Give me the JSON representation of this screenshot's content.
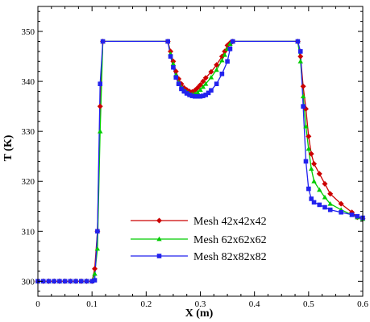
{
  "chart_data": {
    "type": "line",
    "xlabel": "X (m)",
    "ylabel": "T (K)",
    "xlim": [
      0,
      0.6
    ],
    "ylim": [
      297,
      355
    ],
    "xticks": [
      0,
      0.1,
      0.2,
      0.3,
      0.4,
      0.5,
      0.6
    ],
    "xtick_labels": [
      "0",
      "0.1",
      "0.2",
      "0.3",
      "0.4",
      "0.5",
      "0.6"
    ],
    "yticks": [
      300,
      310,
      320,
      330,
      340,
      350
    ],
    "ytick_labels": [
      "300",
      "310",
      "320",
      "330",
      "340",
      "350"
    ],
    "grid": false,
    "legend_position": "lower-center",
    "series": [
      {
        "name": "Mesh 42x42x42",
        "color": "#cc0000",
        "marker": "diamond",
        "x": [
          0,
          0.01,
          0.02,
          0.03,
          0.04,
          0.05,
          0.06,
          0.07,
          0.08,
          0.09,
          0.1,
          0.105,
          0.11,
          0.115,
          0.12,
          0.24,
          0.245,
          0.25,
          0.255,
          0.26,
          0.265,
          0.27,
          0.275,
          0.28,
          0.285,
          0.29,
          0.295,
          0.3,
          0.305,
          0.31,
          0.32,
          0.33,
          0.34,
          0.345,
          0.35,
          0.355,
          0.36,
          0.48,
          0.485,
          0.49,
          0.495,
          0.5,
          0.505,
          0.51,
          0.52,
          0.53,
          0.54,
          0.56,
          0.58,
          0.59,
          0.6
        ],
        "y": [
          300,
          300,
          300,
          300,
          300,
          300,
          300,
          300,
          300,
          300,
          300,
          302.5,
          310,
          335,
          348,
          348,
          346,
          344,
          342,
          340.5,
          339.5,
          338.7,
          338.3,
          338,
          337.9,
          338.2,
          338.7,
          339.3,
          340,
          340.7,
          341.9,
          343.3,
          345,
          346,
          347.2,
          347.7,
          348,
          348,
          345,
          339,
          334.5,
          329,
          325.5,
          323.5,
          321.5,
          319.5,
          317.5,
          315.5,
          313.8,
          312.8,
          312.5
        ]
      },
      {
        "name": "Mesh 62x62x62",
        "color": "#00cc00",
        "marker": "triangle",
        "x": [
          0,
          0.01,
          0.02,
          0.03,
          0.04,
          0.05,
          0.06,
          0.07,
          0.08,
          0.09,
          0.1,
          0.105,
          0.11,
          0.115,
          0.12,
          0.24,
          0.245,
          0.25,
          0.255,
          0.26,
          0.265,
          0.27,
          0.275,
          0.28,
          0.285,
          0.29,
          0.295,
          0.3,
          0.305,
          0.31,
          0.32,
          0.33,
          0.34,
          0.345,
          0.35,
          0.355,
          0.36,
          0.48,
          0.485,
          0.49,
          0.495,
          0.5,
          0.505,
          0.51,
          0.52,
          0.53,
          0.54,
          0.56,
          0.58,
          0.59,
          0.6
        ],
        "y": [
          300,
          300,
          300,
          300,
          300,
          300,
          300,
          300,
          300,
          300,
          300,
          301.5,
          306.5,
          330,
          348,
          348,
          345.5,
          343.5,
          341.3,
          339.8,
          338.8,
          338.2,
          337.8,
          337.5,
          337.4,
          337.5,
          337.8,
          338.3,
          338.9,
          339.5,
          340.8,
          342.3,
          344.2,
          345.3,
          346.5,
          347.5,
          348,
          348,
          344,
          337,
          331,
          326.5,
          322.5,
          320,
          318.3,
          316.8,
          315.5,
          314.3,
          313.3,
          312.8,
          312.5
        ]
      },
      {
        "name": "Mesh 82x82x82",
        "color": "#2222ee",
        "marker": "square",
        "x": [
          0,
          0.01,
          0.02,
          0.03,
          0.04,
          0.05,
          0.06,
          0.07,
          0.08,
          0.09,
          0.1,
          0.105,
          0.11,
          0.115,
          0.12,
          0.24,
          0.245,
          0.25,
          0.255,
          0.26,
          0.265,
          0.27,
          0.275,
          0.28,
          0.285,
          0.29,
          0.295,
          0.3,
          0.305,
          0.31,
          0.315,
          0.32,
          0.33,
          0.34,
          0.35,
          0.355,
          0.36,
          0.48,
          0.485,
          0.49,
          0.495,
          0.5,
          0.505,
          0.51,
          0.52,
          0.53,
          0.54,
          0.56,
          0.58,
          0.59,
          0.6
        ],
        "y": [
          300,
          300,
          300,
          300,
          300,
          300,
          300,
          300,
          300,
          300,
          300,
          300.2,
          310,
          339.5,
          348,
          348,
          345,
          342.8,
          340.8,
          339.5,
          338.5,
          338,
          337.6,
          337.3,
          337.1,
          337,
          337,
          337,
          337.1,
          337.3,
          337.7,
          338.2,
          339.5,
          341.5,
          344,
          346.5,
          348,
          348,
          346,
          335,
          324,
          318.5,
          316.5,
          315.8,
          315.3,
          314.8,
          314.3,
          313.8,
          313.3,
          313,
          312.7
        ]
      }
    ]
  }
}
